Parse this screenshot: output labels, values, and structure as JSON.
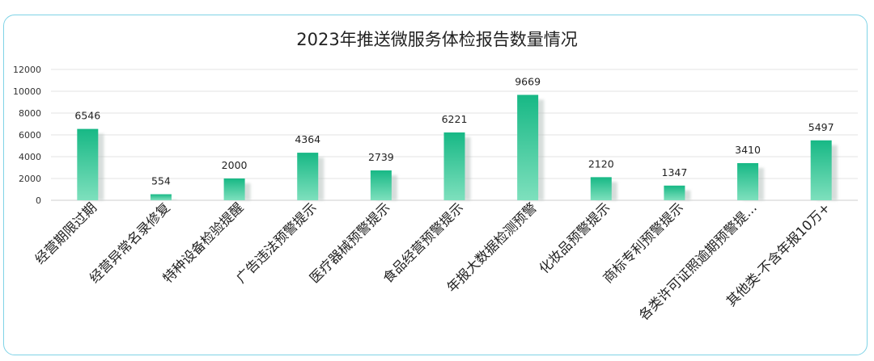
{
  "chart_data": {
    "type": "bar",
    "title": "2023年推送微服务体检报告数量情况",
    "categories": [
      "经营期限过期",
      "经营异常名录修复",
      "特种设备检验提醒",
      "广告违法预警提示",
      "医疗器械预警提示",
      "食品经营预警提示",
      "年报大数据检测预警",
      "化妆品预警提示",
      "商标专利预警提示",
      "各类许可证照逾期预警提...",
      "其他类-不含年报10万+"
    ],
    "values": [
      6546,
      554,
      2000,
      4364,
      2739,
      6221,
      9669,
      2120,
      1347,
      3410,
      5497
    ],
    "data_labels": [
      "6546",
      "554",
      "2000",
      "4364",
      "2739",
      "6221",
      "9669",
      "2120",
      "1347",
      "3410",
      "5497"
    ],
    "ylim": [
      0,
      12000
    ],
    "yticks": [
      "0",
      "2000",
      "4000",
      "6000",
      "8000",
      "10000",
      "12000"
    ],
    "xlabel": "",
    "ylabel": "",
    "grid": true,
    "colors": {
      "bar_top": "#17b885",
      "bar_bottom": "#7ee0bd",
      "bar_shadow": "#b7c3bf",
      "frame_border": "#7fd3e6"
    }
  }
}
